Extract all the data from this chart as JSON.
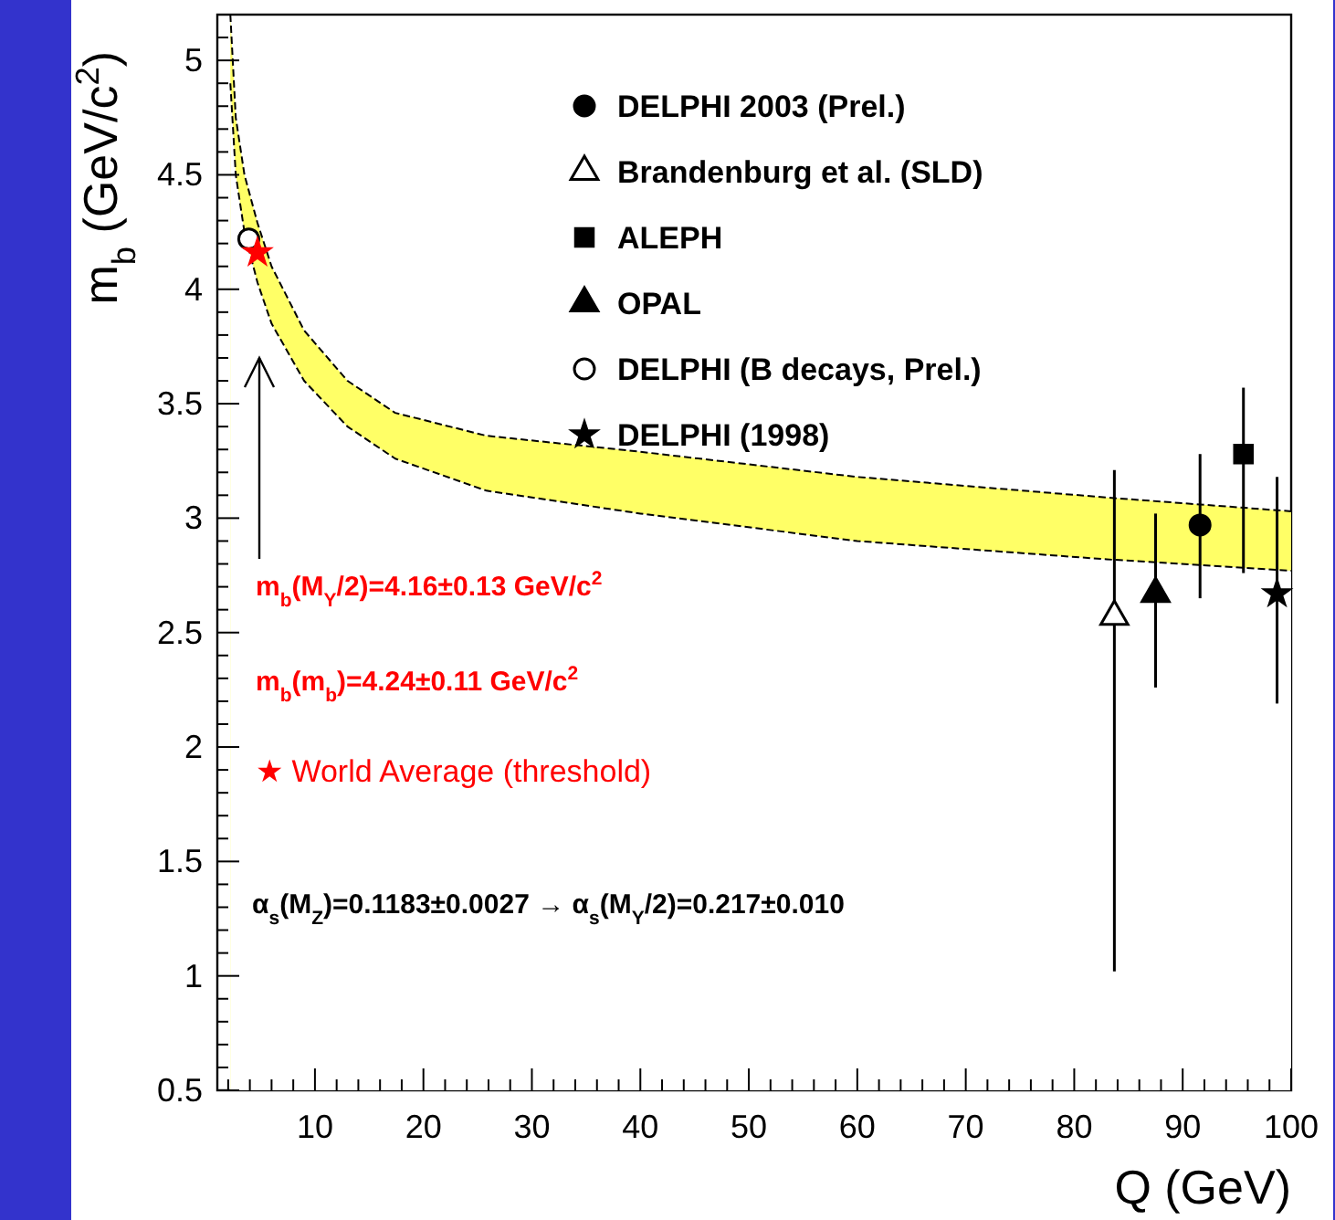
{
  "chart_data": {
    "type": "scatter",
    "xlabel": "Q (GeV)",
    "ylabel": "m$_{b}$ (GeV/c$^{2}$)",
    "xlim": [
      1,
      100
    ],
    "ylim": [
      0.5,
      5.2
    ],
    "xticks": [
      {
        "value": 2,
        "label": null
      },
      {
        "value": 4,
        "label": null
      },
      {
        "value": 6,
        "label": null
      },
      {
        "value": 8,
        "label": null
      },
      10,
      {
        "value": 12,
        "label": null
      },
      {
        "value": 14,
        "label": null
      },
      {
        "value": 16,
        "label": null
      },
      {
        "value": 18,
        "label": null
      },
      20,
      {
        "value": 22,
        "label": null
      },
      {
        "value": 24,
        "label": null
      },
      {
        "value": 26,
        "label": null
      },
      {
        "value": 28,
        "label": null
      },
      30,
      {
        "value": 32,
        "label": null
      },
      {
        "value": 34,
        "label": null
      },
      {
        "value": 36,
        "label": null
      },
      {
        "value": 38,
        "label": null
      },
      40,
      {
        "value": 42,
        "label": null
      },
      {
        "value": 44,
        "label": null
      },
      {
        "value": 46,
        "label": null
      },
      {
        "value": 48,
        "label": null
      },
      50,
      {
        "value": 52,
        "label": null
      },
      {
        "value": 54,
        "label": null
      },
      {
        "value": 56,
        "label": null
      },
      {
        "value": 58,
        "label": null
      },
      60,
      {
        "value": 62,
        "label": null
      },
      {
        "value": 64,
        "label": null
      },
      {
        "value": 66,
        "label": null
      },
      {
        "value": 68,
        "label": null
      },
      70,
      {
        "value": 72,
        "label": null
      },
      {
        "value": 74,
        "label": null
      },
      {
        "value": 76,
        "label": null
      },
      {
        "value": 78,
        "label": null
      },
      80,
      {
        "value": 82,
        "label": null
      },
      {
        "value": 84,
        "label": null
      },
      {
        "value": 86,
        "label": null
      },
      {
        "value": 88,
        "label": null
      },
      90,
      {
        "value": 92,
        "label": null
      },
      {
        "value": 94,
        "label": null
      },
      {
        "value": 96,
        "label": null
      },
      {
        "value": 98,
        "label": null
      },
      100
    ],
    "yticks": [
      0.5,
      {
        "value": 0.6,
        "label": null
      },
      {
        "value": 0.7,
        "label": null
      },
      {
        "value": 0.8,
        "label": null
      },
      {
        "value": 0.9,
        "label": null
      },
      1,
      {
        "value": 1.1,
        "label": null
      },
      {
        "value": 1.2,
        "label": null
      },
      {
        "value": 1.3,
        "label": null
      },
      {
        "value": 1.4,
        "label": null
      },
      1.5,
      {
        "value": 1.6,
        "label": null
      },
      {
        "value": 1.7,
        "label": null
      },
      {
        "value": 1.8,
        "label": null
      },
      {
        "value": 1.9,
        "label": null
      },
      2,
      {
        "value": 2.1,
        "label": null
      },
      {
        "value": 2.2,
        "label": null
      },
      {
        "value": 2.3,
        "label": null
      },
      {
        "value": 2.4,
        "label": null
      },
      2.5,
      {
        "value": 2.6,
        "label": null
      },
      {
        "value": 2.7,
        "label": null
      },
      {
        "value": 2.8,
        "label": null
      },
      {
        "value": 2.9,
        "label": null
      },
      3,
      {
        "value": 3.1,
        "label": null
      },
      {
        "value": 3.2,
        "label": null
      },
      {
        "value": 3.3,
        "label": null
      },
      {
        "value": 3.4,
        "label": null
      },
      3.5,
      {
        "value": 3.6,
        "label": null
      },
      {
        "value": 3.7,
        "label": null
      },
      {
        "value": 3.8,
        "label": null
      },
      {
        "value": 3.9,
        "label": null
      },
      4,
      {
        "value": 4.1,
        "label": null
      },
      {
        "value": 4.2,
        "label": null
      },
      {
        "value": 4.3,
        "label": null
      },
      {
        "value": 4.4,
        "label": null
      },
      4.5,
      {
        "value": 4.6,
        "label": null
      },
      {
        "value": 4.7,
        "label": null
      },
      {
        "value": 4.8,
        "label": null
      },
      {
        "value": 4.9,
        "label": null
      },
      5,
      {
        "value": 5.1,
        "label": null
      }
    ],
    "grid": false,
    "legend": "top right",
    "series": [
      {
        "type": "area",
        "color": "#ffff66",
        "x": [
          2.2,
          2.7,
          3.5,
          4.7,
          6,
          9,
          13,
          17.4,
          25.8,
          40,
          60,
          83,
          100
        ],
        "values": [
          5.2,
          4.75,
          4.5,
          4.29,
          4.1,
          3.82,
          3.6,
          3.46,
          3.36,
          3.29,
          3.18,
          3.09,
          3.03
        ]
      },
      {
        "type": "area",
        "color": "#ffffff",
        "x": [
          2.2,
          2.7,
          3.5,
          4.7,
          6,
          9,
          13,
          17.4,
          25.8,
          40,
          60,
          83,
          100
        ],
        "values": [
          4.9,
          4.5,
          4.25,
          4.03,
          3.85,
          3.6,
          3.4,
          3.26,
          3.12,
          3.02,
          2.9,
          2.82,
          2.77
        ]
      },
      {
        "name": "DELPHI 2003 (Prel.)",
        "marker": "circle",
        "color": "#000000",
        "x": [
          91.6
        ],
        "values": [
          2.97
        ],
        "errors": [
          [
            2.65,
            3.28
          ]
        ]
      },
      {
        "name": "Brandenburg et al. (SLD)",
        "marker": "triangle",
        "color": "#ffffff",
        "x": [
          83.7
        ],
        "values": [
          2.57
        ],
        "errors": [
          [
            1.02,
            3.21
          ]
        ]
      },
      {
        "name": "ALEPH",
        "marker": "square",
        "color": "#000000",
        "x": [
          95.6
        ],
        "values": [
          3.28
        ],
        "errors": [
          [
            2.76,
            3.57
          ]
        ]
      },
      {
        "name": "OPAL",
        "marker": "triangle",
        "color": "#000000",
        "x": [
          87.5
        ],
        "values": [
          2.67
        ],
        "errors": [
          [
            2.26,
            3.02
          ]
        ]
      },
      {
        "name": "DELPHI (B decays, Prel.)",
        "marker": "circle",
        "color": "#ffffff",
        "x": [
          3.9
        ],
        "values": [
          4.22
        ]
      },
      {
        "name": "DELPHI (1998)",
        "marker": "star",
        "color": "#000000",
        "x": [
          98.7
        ],
        "values": [
          2.67
        ],
        "errors": [
          [
            2.19,
            3.18
          ]
        ]
      },
      {
        "marker": "star",
        "color": "#ff0000",
        "x": [
          4.7
        ],
        "values": [
          4.16
        ]
      }
    ],
    "annotations": [
      "m$_{b}$(M$_{Υ}$/2)=4.16±0.13 GeV/c$^{2}$",
      "m$_{b}$(m$_{b}$)=4.24±0.11 GeV/c$^{2}$",
      "★  World Average (threshold)",
      "α$_{s}$(M$_{Z}$)=0.1183±0.0027 → α$_{s}$(M$_{Υ}$/2)=0.217±0.010"
    ]
  }
}
